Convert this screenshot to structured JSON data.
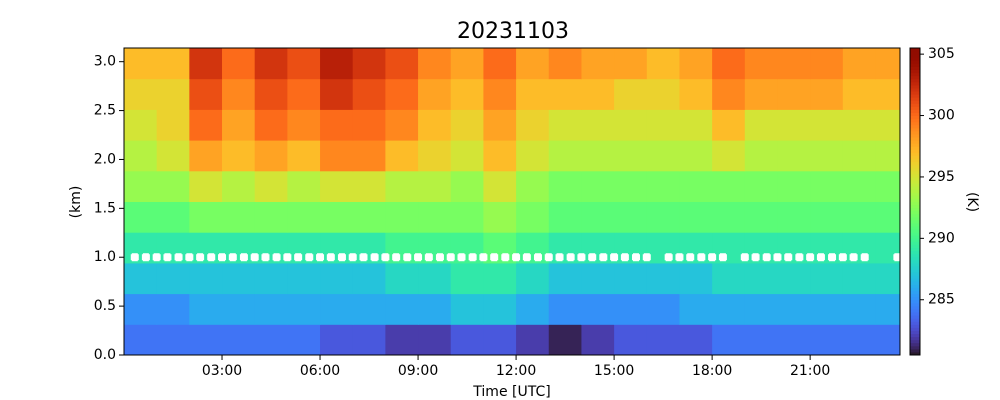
{
  "chart_data": {
    "type": "heatmap",
    "title": "20231103",
    "xlabel": "Time [UTC]",
    "ylabel": "(km)",
    "colorbar_label": "(K)",
    "x_bins": [
      0,
      1,
      2,
      3,
      4,
      5,
      6,
      7,
      8,
      9,
      10,
      11,
      12,
      13,
      14,
      15,
      16,
      17,
      18,
      19,
      20,
      21,
      22,
      23,
      23.75
    ],
    "y_bins": [
      0,
      0.314,
      0.628,
      0.942,
      1.256,
      1.57,
      1.884,
      2.198,
      2.512,
      2.826,
      3.14
    ],
    "z": [
      [
        284,
        284,
        284,
        284,
        284,
        284,
        283,
        283,
        282,
        282,
        283,
        283,
        282,
        281,
        282,
        283,
        283,
        283,
        284,
        284,
        284,
        284,
        284,
        284
      ],
      [
        285,
        285,
        286,
        286,
        286,
        286,
        286,
        286,
        286,
        286,
        287,
        287,
        286,
        285,
        285,
        285,
        285,
        286,
        286,
        286,
        286,
        286,
        286,
        286
      ],
      [
        287,
        287,
        287,
        287,
        287,
        287,
        287,
        287,
        288,
        288,
        289,
        289,
        288,
        287,
        287,
        287,
        287,
        287,
        288,
        288,
        288,
        288,
        288,
        288
      ],
      [
        289,
        289,
        289,
        289,
        289,
        289,
        289,
        289,
        290,
        290,
        290,
        291,
        290,
        289,
        289,
        289,
        289,
        289,
        289,
        289,
        289,
        289,
        289,
        289
      ],
      [
        291,
        291,
        292,
        292,
        292,
        292,
        292,
        292,
        292,
        292,
        292,
        293,
        292,
        291,
        291,
        291,
        291,
        291,
        291,
        291,
        291,
        291,
        291,
        291
      ],
      [
        293,
        293,
        295,
        294,
        295,
        294,
        295,
        295,
        294,
        294,
        293,
        295,
        293,
        292,
        292,
        292,
        292,
        292,
        292,
        292,
        292,
        292,
        292,
        292
      ],
      [
        294,
        295,
        298,
        297,
        298,
        297,
        299,
        299,
        297,
        296,
        295,
        297,
        295,
        294,
        294,
        294,
        294,
        294,
        295,
        294,
        294,
        294,
        294,
        294
      ],
      [
        295,
        296,
        300,
        298,
        300,
        299,
        300,
        300,
        299,
        297,
        296,
        298,
        296,
        295,
        295,
        295,
        295,
        295,
        297,
        295,
        295,
        295,
        295,
        295
      ],
      [
        296,
        296,
        301,
        299,
        301,
        300,
        302,
        301,
        300,
        298,
        297,
        299,
        297,
        297,
        297,
        296,
        296,
        297,
        299,
        298,
        298,
        298,
        297,
        297
      ],
      [
        297,
        297,
        302,
        300,
        302,
        301,
        303,
        302,
        301,
        299,
        298,
        300,
        298,
        299,
        298,
        298,
        297,
        298,
        300,
        299,
        299,
        299,
        298,
        298
      ]
    ],
    "clim": [
      280.5,
      305.5
    ],
    "cticks": [
      285,
      290,
      295,
      300,
      305
    ],
    "colormap": "turbo",
    "points": {
      "color": "#ffffff",
      "y": 1.0,
      "x": [
        0.33,
        0.67,
        1,
        1.33,
        1.67,
        2,
        2.33,
        2.67,
        3,
        3.33,
        3.67,
        4,
        4.33,
        4.67,
        5,
        5.33,
        5.67,
        6,
        6.33,
        6.67,
        7,
        7.33,
        7.67,
        8,
        8.33,
        8.67,
        9,
        9.33,
        9.67,
        10,
        10.33,
        10.67,
        11,
        11.33,
        11.67,
        12,
        12.33,
        12.67,
        13,
        13.33,
        13.67,
        14,
        14.33,
        14.67,
        15,
        15.33,
        15.67,
        16,
        16.67,
        17,
        17.33,
        17.67,
        18,
        18.33,
        19,
        19.33,
        19.67,
        20,
        20.33,
        20.67,
        21,
        21.33,
        21.67,
        22,
        22.33,
        22.67,
        23.67
      ]
    },
    "xlim": [
      0,
      23.75
    ],
    "xticks": [
      {
        "value": 3,
        "label": "03:00"
      },
      {
        "value": 6,
        "label": "06:00"
      },
      {
        "value": 9,
        "label": "09:00"
      },
      {
        "value": 12,
        "label": "12:00"
      },
      {
        "value": 15,
        "label": "15:00"
      },
      {
        "value": 18,
        "label": "18:00"
      },
      {
        "value": 21,
        "label": "21:00"
      }
    ],
    "ylim": [
      0,
      3.14
    ],
    "yticks": [
      {
        "value": 0,
        "label": "0.0"
      },
      0.5,
      {
        "value": 1,
        "label": "1.0"
      },
      1.5,
      {
        "value": 2,
        "label": "2.0"
      },
      2.5,
      {
        "value": 3,
        "label": "3.0"
      }
    ]
  }
}
